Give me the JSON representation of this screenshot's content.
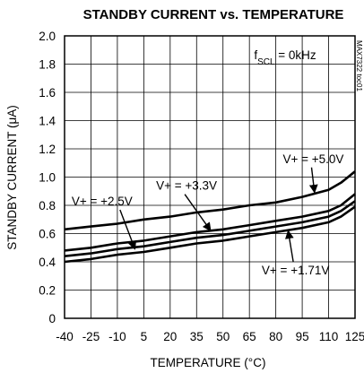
{
  "chart_data": {
    "type": "line",
    "title": "STANDBY CURRENT vs. TEMPERATURE",
    "xlabel": "TEMPERATURE (°C)",
    "ylabel": "STANDBY CURRENT (μA)",
    "xlim": [
      -40,
      125
    ],
    "ylim": [
      0,
      2.0
    ],
    "x_ticks": [
      -40,
      -25,
      -10,
      5,
      20,
      35,
      50,
      65,
      80,
      95,
      110,
      125
    ],
    "y_ticks": [
      "0",
      "0.2",
      "0.4",
      "0.6",
      "0.8",
      "1.0",
      "1.2",
      "1.4",
      "1.6",
      "1.8",
      "2.0"
    ],
    "grid": true,
    "condition": {
      "base": "f",
      "sub": "SCL",
      "rest": " = 0kHz"
    },
    "watermark": "MAX7322 toc01",
    "series": [
      {
        "name": "V+ = +5.0V",
        "x": [
          -40,
          -25,
          -10,
          5,
          20,
          35,
          50,
          65,
          80,
          95,
          110,
          117,
          125
        ],
        "y": [
          0.63,
          0.65,
          0.67,
          0.7,
          0.72,
          0.75,
          0.77,
          0.8,
          0.82,
          0.86,
          0.91,
          0.96,
          1.04
        ]
      },
      {
        "name": "V+ = +3.3V",
        "x": [
          -40,
          -25,
          -10,
          5,
          20,
          35,
          50,
          65,
          80,
          95,
          110,
          117,
          125
        ],
        "y": [
          0.48,
          0.5,
          0.53,
          0.55,
          0.58,
          0.61,
          0.63,
          0.66,
          0.69,
          0.72,
          0.76,
          0.8,
          0.88
        ]
      },
      {
        "name": "V+ = +2.5V",
        "x": [
          -40,
          -25,
          -10,
          5,
          20,
          35,
          50,
          65,
          80,
          95,
          110,
          117,
          125
        ],
        "y": [
          0.44,
          0.46,
          0.49,
          0.51,
          0.54,
          0.57,
          0.59,
          0.62,
          0.65,
          0.68,
          0.72,
          0.76,
          0.83
        ]
      },
      {
        "name": "V+ = +1.71V",
        "x": [
          -40,
          -25,
          -10,
          5,
          20,
          35,
          50,
          65,
          80,
          95,
          110,
          117,
          125
        ],
        "y": [
          0.4,
          0.42,
          0.45,
          0.47,
          0.5,
          0.53,
          0.55,
          0.58,
          0.61,
          0.64,
          0.68,
          0.72,
          0.79
        ]
      }
    ],
    "annotations": [
      {
        "series": "V+ = +5.0V",
        "text": "V+ = +5.0V",
        "label_at": [
          84,
          1.1
        ],
        "arrow_to": [
          102,
          0.89
        ]
      },
      {
        "series": "V+ = +3.3V",
        "text": "V+ = +3.3V",
        "label_at": [
          12,
          0.91
        ],
        "arrow_to": [
          43,
          0.62
        ]
      },
      {
        "series": "V+ = +2.5V",
        "text": "V+ = +2.5V",
        "label_at": [
          -36,
          0.8
        ],
        "arrow_to": [
          0,
          0.49
        ]
      },
      {
        "series": "V+ = +1.71V",
        "text": "V+ = +1.71V",
        "label_at": [
          72,
          0.31
        ],
        "arrow_to": [
          87,
          0.62
        ]
      }
    ]
  }
}
